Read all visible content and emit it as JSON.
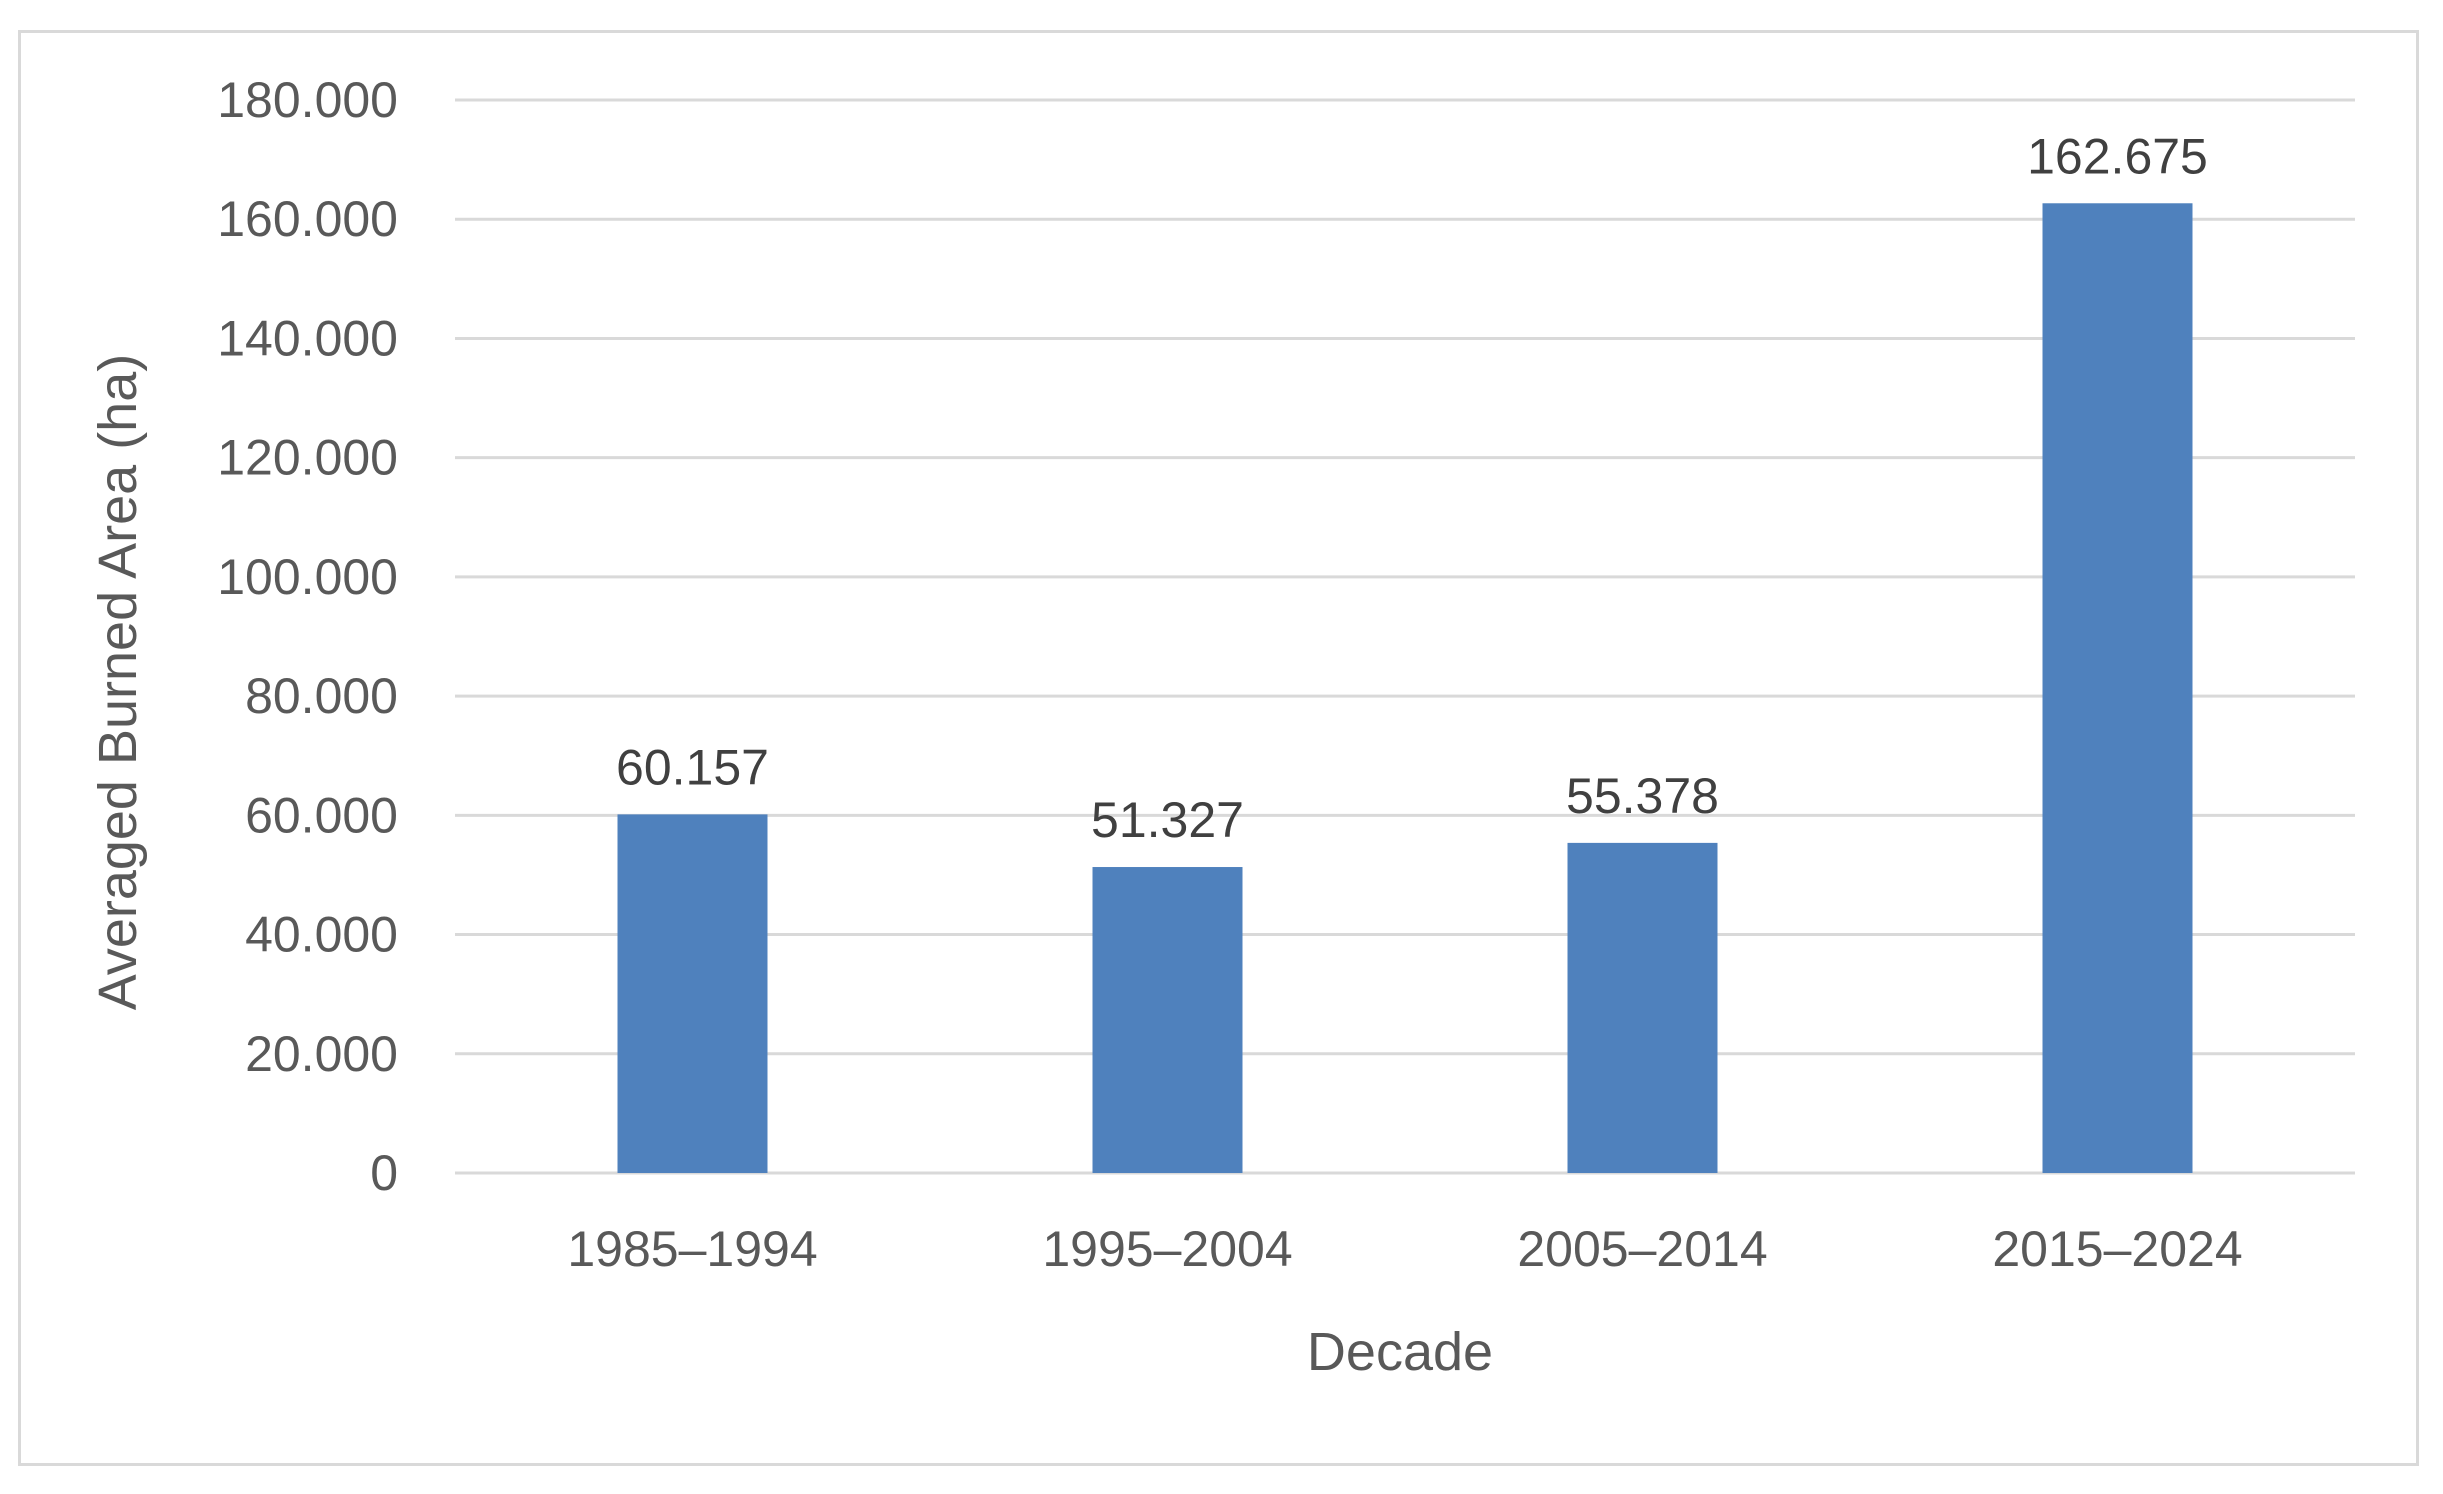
{
  "chart_data": {
    "type": "bar",
    "title": "",
    "xlabel": "Decade",
    "ylabel": "Averaged Burned Area (ha)",
    "categories": [
      "1985–1994",
      "1995–2004",
      "2005–2014",
      "2015–2024"
    ],
    "values": [
      60157,
      51327,
      55378,
      162675
    ],
    "data_labels": [
      "60.157",
      "51.327",
      "55.378",
      "162.675"
    ],
    "ylim": [
      0,
      180000
    ],
    "yticks": [
      0,
      20000,
      40000,
      60000,
      80000,
      100000,
      120000,
      140000,
      160000,
      180000
    ],
    "ytick_labels": [
      "0",
      "20.000",
      "40.000",
      "60.000",
      "80.000",
      "100.000",
      "120.000",
      "140.000",
      "160.000",
      "180.000"
    ],
    "grid": true,
    "legend": "none",
    "colors": {
      "bar": "#4f81bd",
      "grid": "#d9d9d9",
      "frame": "#d9d9d9"
    }
  }
}
